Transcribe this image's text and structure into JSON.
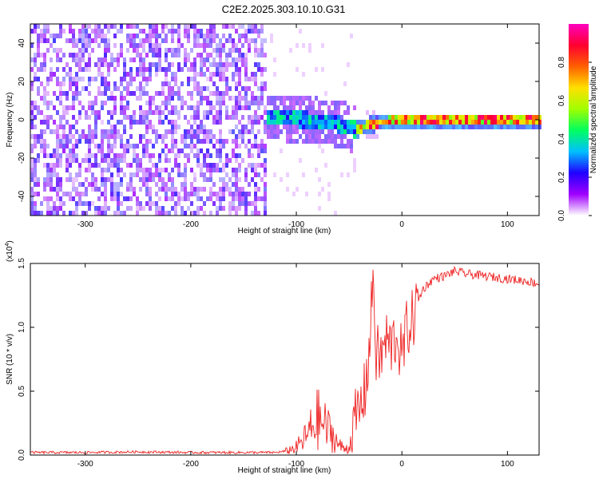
{
  "title": "C2E2.2025.303.10.10.G31",
  "chart_data": [
    {
      "type": "heatmap",
      "title": "C2E2.2025.303.10.10.G31",
      "xlabel": "Height of straight line (km)",
      "ylabel": "Frequency (Hz)",
      "xlim": [
        -352,
        130
      ],
      "ylim": [
        -50,
        50
      ],
      "x_ticks": [
        "-300",
        "-200",
        "-100",
        "0",
        "100"
      ],
      "x_tick_values": [
        -300,
        -200,
        -100,
        0,
        100
      ],
      "y_ticks": [
        "40",
        "20",
        "0",
        "-20",
        "-40"
      ],
      "y_tick_values": [
        40,
        20,
        0,
        -20,
        -40
      ],
      "colorbar": {
        "label": "Normalized spectral amplitude",
        "range": [
          0,
          1
        ],
        "ticks": [
          "0.0",
          "0.2",
          "0.4",
          "0.6",
          "0.8"
        ],
        "tick_values": [
          0.0,
          0.2,
          0.4,
          0.6,
          0.8
        ],
        "colors": [
          "#ffffff",
          "#a000ff",
          "#2000ff",
          "#00c0ff",
          "#00ff60",
          "#a0ff00",
          "#ffe000",
          "#ff6000",
          "#ff0030",
          "#ff00c0"
        ]
      },
      "regions": [
        {
          "x": [
            -352,
            -130
          ],
          "y": [
            -50,
            50
          ],
          "amplitude": 0.15,
          "description_free": true
        },
        {
          "x": [
            -130,
            -45
          ],
          "y": [
            -12,
            12
          ],
          "amplitude": 0.3
        },
        {
          "x": [
            -45,
            130
          ],
          "y": [
            -3,
            3
          ],
          "amplitude": 0.5
        }
      ],
      "ridge": {
        "x": [
          -130,
          -110,
          -90,
          -70,
          -55,
          -45,
          -35,
          -20,
          -10,
          0,
          20,
          60,
          100,
          130
        ],
        "y": [
          3,
          2,
          1,
          0,
          -2,
          -4,
          -2,
          0,
          1,
          1,
          1,
          1,
          1,
          1
        ]
      }
    },
    {
      "type": "line",
      "xlabel": "Height of straight line (km)",
      "ylabel": "SNR (10 * v/v)",
      "y_multiplier_label": "(x10",
      "y_multiplier_exp": "4",
      "xlim": [
        -352,
        130
      ],
      "ylim": [
        0,
        1.5
      ],
      "x_ticks": [
        "-300",
        "-200",
        "-100",
        "0",
        "100"
      ],
      "x_tick_values": [
        -300,
        -200,
        -100,
        0,
        100
      ],
      "y_ticks": [
        "0.0",
        "0.5",
        "1.0",
        "1.5"
      ],
      "y_tick_values": [
        0.0,
        0.5,
        1.0,
        1.5
      ],
      "series": [
        {
          "color": "#ee2222",
          "x": [
            -352,
            -300,
            -250,
            -200,
            -150,
            -120,
            -110,
            -100,
            -95,
            -90,
            -85,
            -80,
            -75,
            -70,
            -65,
            -60,
            -55,
            -50,
            -45,
            -40,
            -35,
            -30,
            -27,
            -25,
            -20,
            -15,
            -10,
            -5,
            0,
            5,
            10,
            15,
            20,
            30,
            40,
            50,
            60,
            70,
            80,
            90,
            100,
            110,
            120,
            130
          ],
          "y": [
            0.02,
            0.02,
            0.025,
            0.02,
            0.02,
            0.02,
            0.03,
            0.06,
            0.1,
            0.15,
            0.22,
            0.28,
            0.25,
            0.2,
            0.15,
            0.08,
            0.05,
            0.06,
            0.25,
            0.35,
            0.5,
            0.9,
            1.5,
            0.8,
            0.75,
            0.9,
            0.85,
            0.95,
            0.75,
            1.0,
            1.05,
            1.2,
            1.3,
            1.38,
            1.4,
            1.44,
            1.42,
            1.41,
            1.4,
            1.39,
            1.38,
            1.37,
            1.36,
            1.34
          ]
        }
      ]
    }
  ]
}
